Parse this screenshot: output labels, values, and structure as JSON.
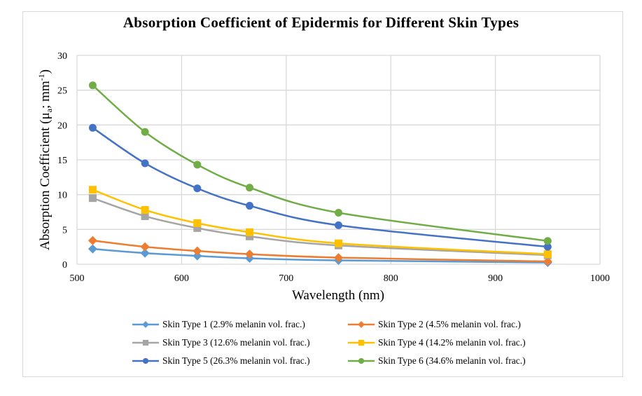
{
  "chart_data": {
    "type": "line",
    "title": "Absorption Coefficient of Epidermis for Different Skin Types",
    "xlabel": "Wavelength (nm)",
    "ylabel_main": "Absorption Coefficient (μ",
    "ylabel_sub": "a",
    "ylabel_mid": "; mm",
    "ylabel_sup": "-1",
    "ylabel_end": ")",
    "ylabel": "Absorption Coefficient (μa; mm-1)",
    "xlim": [
      500,
      1000
    ],
    "ylim": [
      0,
      30
    ],
    "xticks": [
      500,
      600,
      700,
      800,
      900,
      1000
    ],
    "yticks": [
      0,
      5,
      10,
      15,
      20,
      25,
      30
    ],
    "grid": true,
    "legend_position": "bottom",
    "x": [
      515,
      565,
      615,
      665,
      750,
      950
    ],
    "series": [
      {
        "name": "Skin Type 1 (2.9% melanin vol. frac.)",
        "color": "#5b9bd5",
        "marker": "diamond",
        "values": [
          2.2,
          1.6,
          1.2,
          0.85,
          0.55,
          0.25
        ]
      },
      {
        "name": "Skin Type 2 (4.5% melanin vol. frac.)",
        "color": "#ed7d31",
        "marker": "diamond",
        "values": [
          3.4,
          2.5,
          1.9,
          1.45,
          0.95,
          0.4
        ]
      },
      {
        "name": "Skin Type 3 (12.6% melanin vol. frac.)",
        "color": "#a5a5a5",
        "marker": "square",
        "values": [
          9.5,
          6.9,
          5.2,
          4.0,
          2.7,
          1.3
        ]
      },
      {
        "name": "Skin Type 4 (14.2% melanin vol. frac.)",
        "color": "#ffc000",
        "marker": "square",
        "values": [
          10.7,
          7.8,
          5.9,
          4.6,
          3.0,
          1.45
        ]
      },
      {
        "name": "Skin Type 5 (26.3% melanin vol. frac.)",
        "color": "#4472c4",
        "marker": "circle",
        "values": [
          19.6,
          14.5,
          10.9,
          8.4,
          5.6,
          2.5
        ]
      },
      {
        "name": "Skin Type 6 (34.6% melanin vol. frac.)",
        "color": "#70ad47",
        "marker": "circle",
        "values": [
          25.7,
          19.0,
          14.3,
          11.0,
          7.4,
          3.35
        ]
      }
    ]
  }
}
